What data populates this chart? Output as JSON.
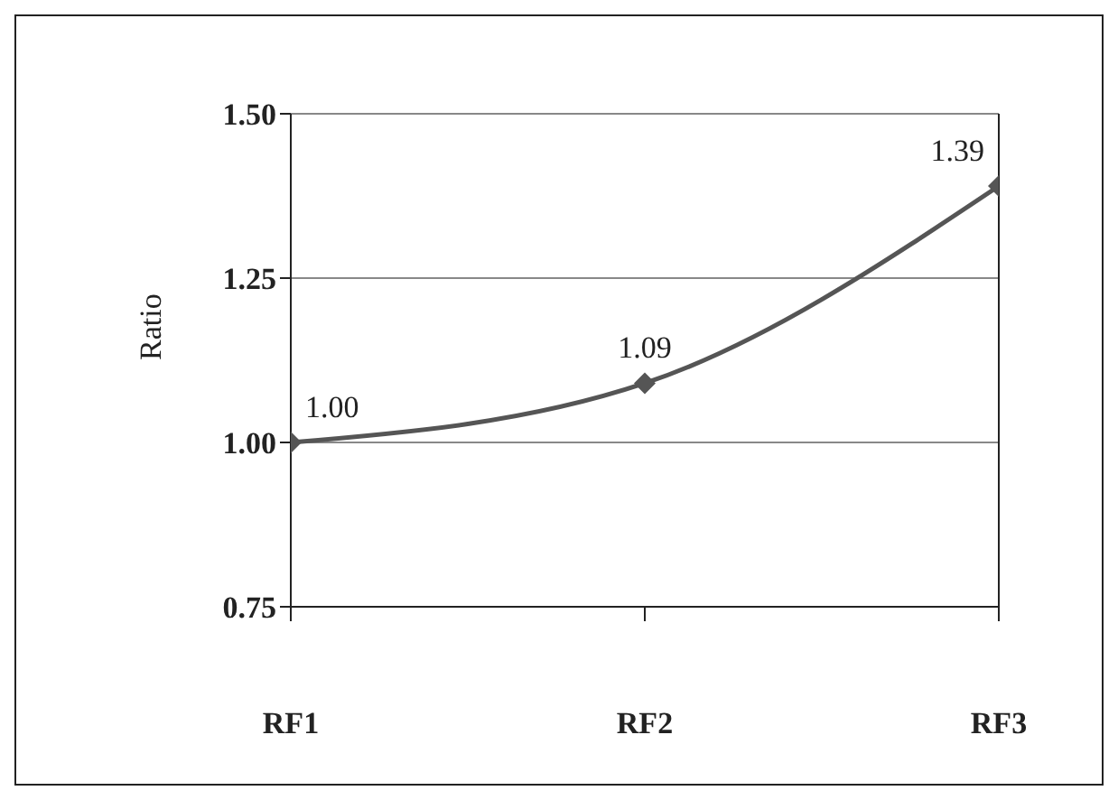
{
  "chart_data": {
    "type": "line",
    "ylabel": "Ratio",
    "categories": [
      "RF1",
      "RF2",
      "RF3"
    ],
    "series": [
      {
        "color": "#555555",
        "values": [
          1.0,
          1.09,
          1.39
        ],
        "value_labels": [
          "1.00",
          "1.09",
          "1.39"
        ]
      }
    ],
    "ylim": [
      0.75,
      1.5
    ],
    "yticks": [
      {
        "value": 0.75,
        "label": "0.75"
      },
      {
        "value": 1,
        "label": "1.00"
      },
      {
        "value": 1.25,
        "label": "1.25"
      },
      {
        "value": 1.5,
        "label": "1.50"
      }
    ],
    "grid": "y",
    "legend": false,
    "marker": "diamond",
    "line_style": "solid"
  }
}
